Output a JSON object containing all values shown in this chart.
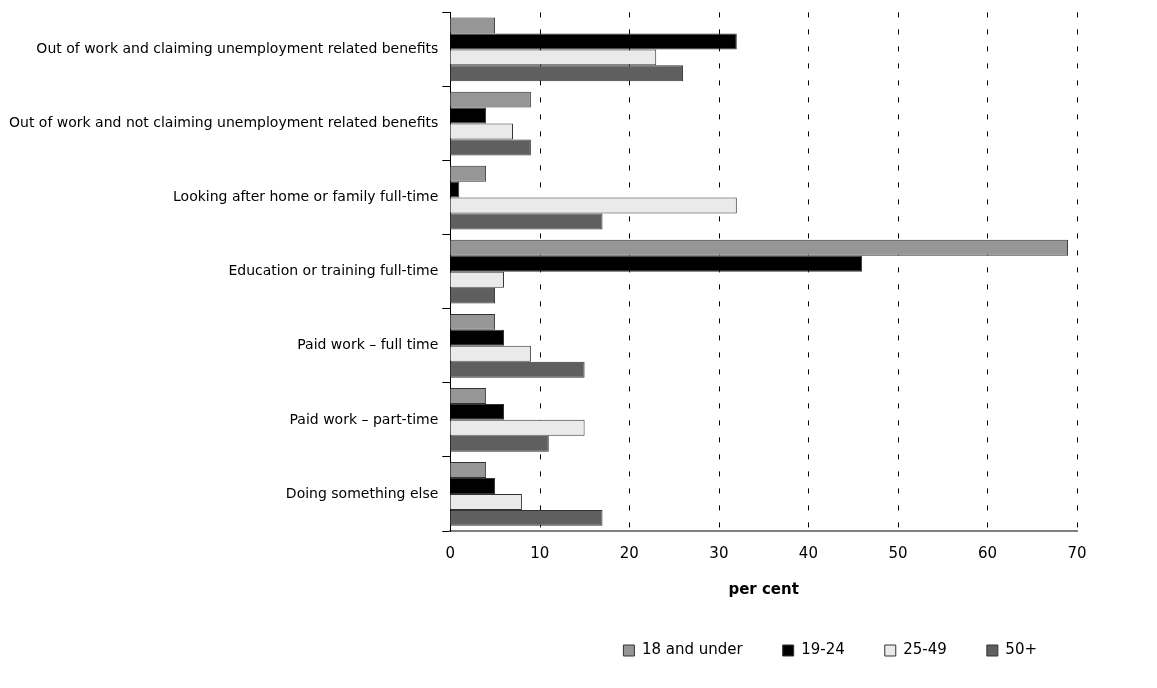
{
  "chart_data": {
    "type": "bar",
    "orientation": "horizontal",
    "xlabel": "per cent",
    "categories": [
      "Out of work and claiming unemployment related benefits",
      "Out of work and not claiming unemployment related benefits",
      "Looking after home or family full-time",
      "Education or training full-time",
      "Paid work – full time",
      "Paid work – part-time",
      "Doing something else"
    ],
    "series": [
      {
        "name": "18 and under",
        "color": "#969696",
        "values": [
          5,
          9,
          4,
          69,
          5,
          4,
          4
        ]
      },
      {
        "name": "19-24",
        "color": "#000000",
        "values": [
          32,
          4,
          1,
          46,
          6,
          6,
          5
        ]
      },
      {
        "name": "25-49",
        "color": "#eaeaea",
        "values": [
          23,
          7,
          32,
          6,
          9,
          15,
          8
        ]
      },
      {
        "name": "50+",
        "color": "#5f5f5f",
        "values": [
          26,
          9,
          17,
          5,
          15,
          11,
          17
        ]
      }
    ],
    "xlim": [
      0,
      70
    ],
    "xticks": [
      0,
      10,
      20,
      30,
      40,
      50,
      60,
      70
    ],
    "grid": "x",
    "legend": "bottom"
  }
}
